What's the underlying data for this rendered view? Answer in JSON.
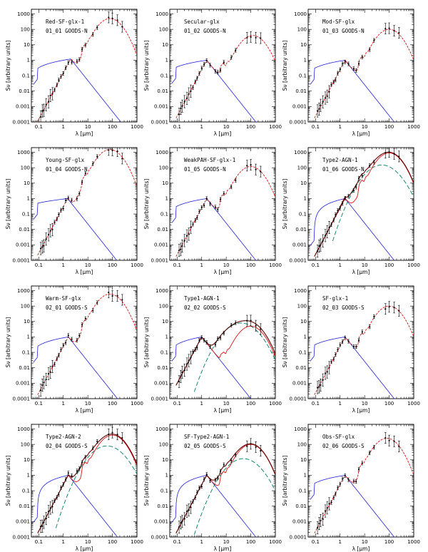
{
  "figure": {
    "xlabel": "λ [μm]",
    "ylabel": "Sν [arbitrary units]",
    "x_ticks": [
      "0.1",
      "1",
      "10",
      "100",
      "1000"
    ],
    "y_ticks": [
      "0.0001",
      "0.001",
      "0.01",
      "0.1",
      "1",
      "10",
      "100",
      "1000"
    ],
    "xlim": [
      0.05,
      1000
    ],
    "ylim": [
      0.0001,
      2000
    ],
    "colors": {
      "stars": "#1f1fd8",
      "model": "#e01010",
      "agn": "#008060",
      "total": "#600000",
      "points": "#000000"
    }
  },
  "chart_data": [
    {
      "type": "line",
      "title": "Red-SF-glx-1",
      "subtitle": "01_01 GOODS-N",
      "agn": false,
      "dust_peak": 80,
      "dust_amp": 500,
      "stellar_peak": 2,
      "stellar_amp": 1.2,
      "uv_amp": 0.3
    },
    {
      "type": "line",
      "title": "Secular-glx",
      "subtitle": "01_02 GOODS-N",
      "agn": false,
      "dust_peak": 120,
      "dust_amp": 40,
      "stellar_peak": 1.6,
      "stellar_amp": 1.0,
      "uv_amp": 0.35
    },
    {
      "type": "line",
      "title": "Mod-SF-glx",
      "subtitle": "01_03 GOODS-N",
      "agn": false,
      "dust_peak": 100,
      "dust_amp": 100,
      "stellar_peak": 1.6,
      "stellar_amp": 1.0,
      "uv_amp": 0.3
    },
    {
      "type": "line",
      "title": "Young-SF-glx",
      "subtitle": "01_04 GOODS-N",
      "agn": false,
      "dust_peak": 80,
      "dust_amp": 1500,
      "stellar_peak": 1.5,
      "stellar_amp": 1.0,
      "uv_amp": 0.5
    },
    {
      "type": "line",
      "title": "WeakPAH-SF-glx-1",
      "subtitle": "01_05 GOODS-N",
      "agn": false,
      "dust_peak": 100,
      "dust_amp": 120,
      "stellar_peak": 1.6,
      "stellar_amp": 1.0,
      "uv_amp": 0.3
    },
    {
      "type": "line",
      "title": "Type2-AGN-1",
      "subtitle": "01_06 GOODS-N",
      "agn": true,
      "agn_peak": 50,
      "agn_amp": 150,
      "dust_peak": 100,
      "dust_amp": 900,
      "stellar_peak": 1.6,
      "stellar_amp": 1.0,
      "uv_amp": 0.01
    },
    {
      "type": "line",
      "title": "Warm-SF-glx",
      "subtitle": "02_01 GOODS-S",
      "agn": false,
      "dust_peak": 80,
      "dust_amp": 600,
      "stellar_peak": 1.6,
      "stellar_amp": 1.0,
      "uv_amp": 0.25
    },
    {
      "type": "line",
      "title": "Type1-AGN-1",
      "subtitle": "02_02 GOODS-S",
      "agn": true,
      "agn_peak": 40,
      "agn_amp": 8,
      "dust_peak": 100,
      "dust_amp": 5,
      "stellar_peak": 1.0,
      "stellar_amp": 1.0,
      "uv_amp": 0.3
    },
    {
      "type": "line",
      "title": "SF-glx-1",
      "subtitle": "02_03 GOODS-S",
      "agn": false,
      "dust_peak": 100,
      "dust_amp": 100,
      "stellar_peak": 1.6,
      "stellar_amp": 1.0,
      "uv_amp": 0.3
    },
    {
      "type": "line",
      "title": "Type2-AGN-2",
      "subtitle": "02_04 GOODS-S",
      "agn": true,
      "agn_peak": 60,
      "agn_amp": 80,
      "dust_peak": 100,
      "dust_amp": 400,
      "stellar_peak": 1.6,
      "stellar_amp": 1.0,
      "uv_amp": 0.01
    },
    {
      "type": "line",
      "title": "SF-Type2-AGN-1",
      "subtitle": "02_05 GOODS-S",
      "agn": true,
      "agn_peak": 50,
      "agn_amp": 12,
      "dust_peak": 100,
      "dust_amp": 100,
      "stellar_peak": 1.6,
      "stellar_amp": 1.0,
      "uv_amp": 0.01
    },
    {
      "type": "line",
      "title": "Obs-SF-glx",
      "subtitle": "02_06 GOODS-S",
      "agn": false,
      "dust_peak": 80,
      "dust_amp": 250,
      "stellar_peak": 1.6,
      "stellar_amp": 1.0,
      "uv_amp": 0.3
    }
  ]
}
